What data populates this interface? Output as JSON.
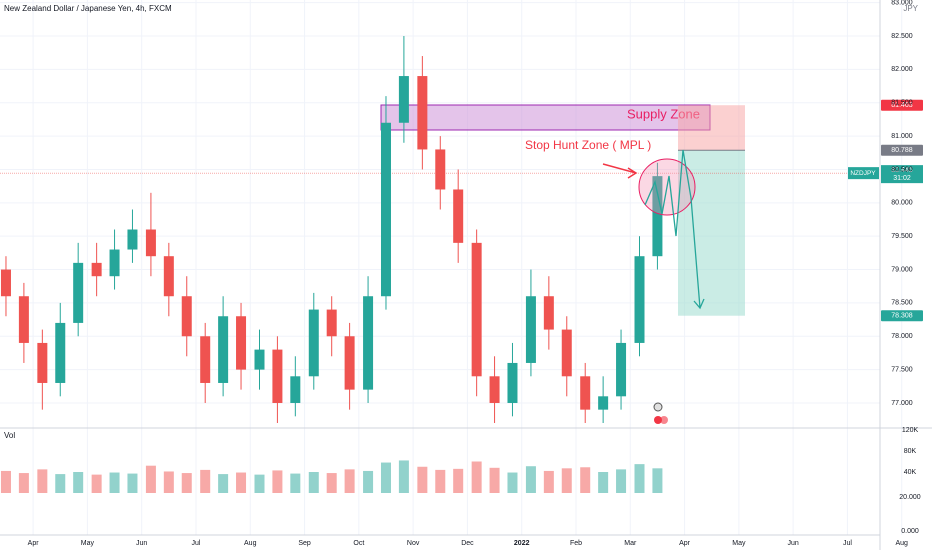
{
  "chart_data": {
    "type": "candlestick",
    "title": "New Zealand Dollar / Japanese Yen, 4h, FXCM",
    "currency": "JPY",
    "up_color": "#26a69a",
    "down_color": "#ef5350",
    "grid": true,
    "x": [
      -0.5,
      -0.17,
      0.17,
      0.5,
      0.83,
      1.17,
      1.5,
      1.83,
      2.17,
      2.5,
      2.83,
      3.17,
      3.5,
      3.83,
      4.17,
      4.5,
      4.83,
      5.17,
      5.5,
      5.83,
      6.17,
      6.5,
      6.83,
      7.17,
      7.5,
      7.83,
      8.17,
      8.5,
      8.83,
      9.17,
      9.5,
      9.83,
      10.17,
      10.5,
      10.83,
      11.17,
      11.5
    ],
    "open": [
      79.0,
      78.6,
      77.9,
      77.3,
      78.2,
      79.1,
      78.9,
      79.3,
      79.6,
      79.2,
      78.6,
      78.0,
      77.3,
      78.3,
      77.5,
      77.8,
      77.0,
      77.4,
      78.4,
      78.0,
      77.2,
      78.6,
      81.2,
      81.9,
      80.8,
      80.2,
      79.4,
      77.4,
      77.0,
      77.6,
      78.6,
      78.1,
      77.4,
      76.9,
      77.1,
      77.9,
      79.2
    ],
    "high": [
      79.2,
      78.8,
      78.1,
      78.5,
      79.4,
      79.4,
      79.6,
      79.9,
      80.15,
      79.4,
      78.9,
      78.2,
      78.6,
      78.5,
      78.1,
      78.0,
      77.7,
      78.65,
      78.6,
      78.2,
      78.9,
      81.6,
      82.5,
      82.2,
      81.0,
      80.5,
      79.6,
      77.7,
      77.9,
      79.0,
      78.9,
      78.3,
      77.6,
      77.4,
      78.1,
      79.5,
      80.6
    ],
    "low": [
      78.3,
      77.6,
      76.9,
      77.1,
      78.0,
      78.6,
      78.7,
      79.1,
      78.9,
      78.3,
      77.7,
      77.0,
      77.1,
      77.2,
      77.2,
      76.7,
      76.8,
      77.2,
      77.7,
      76.9,
      77.0,
      78.4,
      80.9,
      80.5,
      79.9,
      79.1,
      77.1,
      76.7,
      76.8,
      77.4,
      77.8,
      77.1,
      76.7,
      76.7,
      76.9,
      77.7,
      79.0
    ],
    "close": [
      78.6,
      77.9,
      77.3,
      78.2,
      79.1,
      78.9,
      79.3,
      79.6,
      79.2,
      78.6,
      78.0,
      77.3,
      78.3,
      77.5,
      77.8,
      77.0,
      77.4,
      78.4,
      78.0,
      77.2,
      78.6,
      81.2,
      81.9,
      80.8,
      80.2,
      79.4,
      77.4,
      77.0,
      77.6,
      78.6,
      78.1,
      77.4,
      76.9,
      77.1,
      77.9,
      79.2,
      80.4
    ],
    "xlim": [
      -0.61,
      15.6
    ],
    "xticks": [
      {
        "value": 0,
        "label": "Apr"
      },
      {
        "value": 1,
        "label": "May"
      },
      {
        "value": 2,
        "label": "Jun"
      },
      {
        "value": 3,
        "label": "Jul"
      },
      {
        "value": 4,
        "label": "Aug"
      },
      {
        "value": 5,
        "label": "Sep"
      },
      {
        "value": 6,
        "label": "Oct"
      },
      {
        "value": 7,
        "label": "Nov"
      },
      {
        "value": 8,
        "label": "Dec"
      },
      {
        "value": 9,
        "label": "2022"
      },
      {
        "value": 10,
        "label": "Feb"
      },
      {
        "value": 11,
        "label": "Mar"
      },
      {
        "value": 12,
        "label": "Apr"
      },
      {
        "value": 13,
        "label": "May"
      },
      {
        "value": 14,
        "label": "Jun"
      },
      {
        "value": 15,
        "label": "Jul"
      },
      {
        "value": 16,
        "label": "Aug"
      }
    ],
    "ylim": [
      76.625,
      83.04
    ],
    "yticks": [
      {
        "value": 77,
        "label": "77.000"
      },
      {
        "value": 77.5,
        "label": "77.500"
      },
      {
        "value": 78,
        "label": "78.000"
      },
      {
        "value": 78.5,
        "label": "78.500"
      },
      {
        "value": 79,
        "label": "79.000"
      },
      {
        "value": 79.5,
        "label": "79.500"
      },
      {
        "value": 80,
        "label": "80.000"
      },
      {
        "value": 80.5,
        "label": "80.500"
      },
      {
        "value": 81,
        "label": "81.000"
      },
      {
        "value": 81.5,
        "label": "81.500"
      },
      {
        "value": 82,
        "label": "82.000"
      },
      {
        "value": 82.5,
        "label": "82.500"
      },
      {
        "value": 83,
        "label": "83.000"
      }
    ],
    "volume": {
      "label": "Vol",
      "values": [
        42000,
        38000,
        45000,
        36000,
        40000,
        35000,
        39000,
        37000,
        52000,
        41000,
        38000,
        44000,
        36000,
        39000,
        35000,
        43000,
        37000,
        40000,
        38000,
        45000,
        42000,
        58000,
        62000,
        50000,
        44000,
        46000,
        60000,
        48000,
        39000,
        51000,
        42000,
        47000,
        49000,
        40000,
        45000,
        55000,
        47000
      ],
      "ylim": [
        0,
        120000
      ],
      "yticks": [
        {
          "value": 120000,
          "label": "120K"
        },
        {
          "value": 80000,
          "label": "80K"
        },
        {
          "value": 40000,
          "label": "40K"
        }
      ],
      "ma_lim": [
        0,
        20
      ],
      "ma_ticks": [
        {
          "value": 20,
          "label": "20.000"
        },
        {
          "value": 0,
          "label": "0.000"
        }
      ]
    },
    "annotations": {
      "supply_zone": "Supply Zone",
      "stop_hunt": "Stop Hunt Zone ( MPL )"
    },
    "position": {
      "stop": 81.463,
      "entry": 80.788,
      "target": 78.308
    },
    "last_price": {
      "value": 80.445,
      "symbol": "NZDJPY",
      "countdown": "31:02"
    }
  }
}
